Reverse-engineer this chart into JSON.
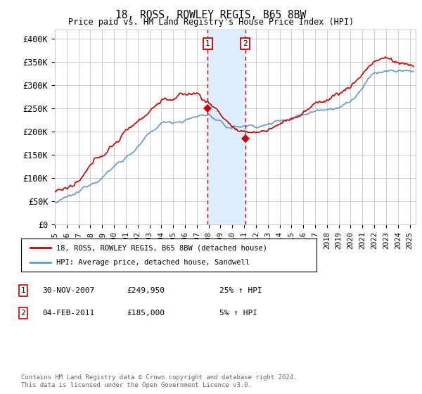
{
  "title": "18, ROSS, ROWLEY REGIS, B65 8BW",
  "subtitle": "Price paid vs. HM Land Registry's House Price Index (HPI)",
  "xlim_start": 1995.0,
  "xlim_end": 2025.5,
  "ylim": [
    0,
    420000
  ],
  "yticks": [
    0,
    50000,
    100000,
    150000,
    200000,
    250000,
    300000,
    350000,
    400000
  ],
  "ytick_labels": [
    "£0",
    "£50K",
    "£100K",
    "£150K",
    "£200K",
    "£250K",
    "£300K",
    "£350K",
    "£400K"
  ],
  "sale1_date_num": 2007.917,
  "sale1_price": 249950,
  "sale2_date_num": 2011.09,
  "sale2_price": 185000,
  "sale1_date_str": "30-NOV-2007",
  "sale1_price_str": "£249,950",
  "sale1_hpi_str": "25% ↑ HPI",
  "sale2_date_str": "04-FEB-2011",
  "sale2_price_str": "£185,000",
  "sale2_hpi_str": "5% ↑ HPI",
  "legend_line1": "18, ROSS, ROWLEY REGIS, B65 8BW (detached house)",
  "legend_line2": "HPI: Average price, detached house, Sandwell",
  "footer": "Contains HM Land Registry data © Crown copyright and database right 2024.\nThis data is licensed under the Open Government Licence v3.0.",
  "red_color": "#cc0000",
  "blue_color": "#6699cc",
  "bg_color": "#ffffff",
  "grid_color": "#cccccc",
  "shade_color": "#ddeeff"
}
